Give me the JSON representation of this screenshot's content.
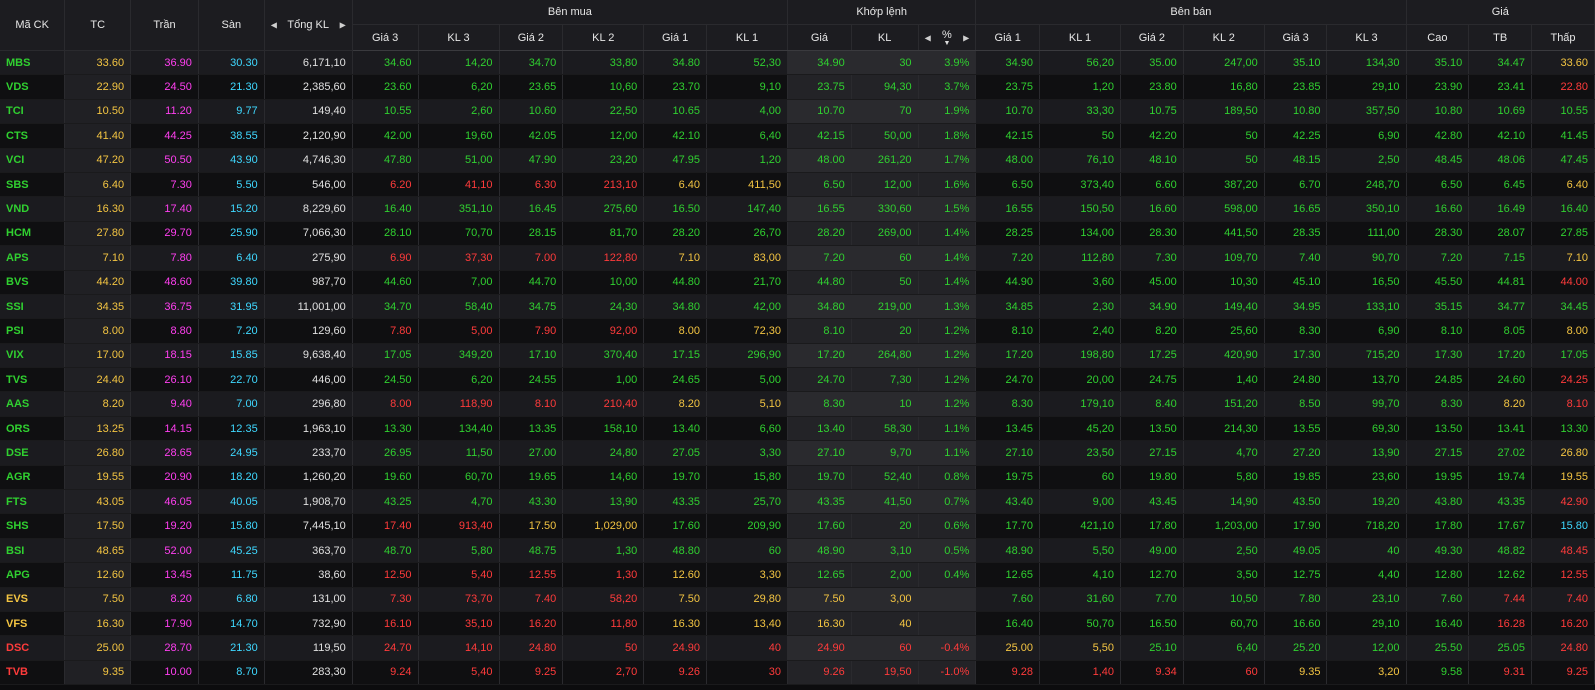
{
  "colors": {
    "up": "#30d030",
    "down": "#ff3b3b",
    "ref": "#f4c542",
    "ceil": "#ff3ff0",
    "floor": "#3fd8ff",
    "neutral": "#e0e0e0"
  },
  "header": {
    "symbol": "Mã CK",
    "ref": "TC",
    "ceil": "Trần",
    "floor": "Sàn",
    "total_vol": "Tổng KL",
    "buy_group": "Bên mua",
    "match_group": "Khớp lệnh",
    "sell_group": "Bên bán",
    "price_group": "Giá",
    "buy": [
      "Giá 3",
      "KL 3",
      "Giá 2",
      "KL 2",
      "Giá 1",
      "KL 1"
    ],
    "match": [
      "Giá",
      "KL",
      "%"
    ],
    "sell": [
      "Giá 1",
      "KL 1",
      "Giá 2",
      "KL 2",
      "Giá 3",
      "KL 3"
    ],
    "price": [
      "Cao",
      "TB",
      "Thấp"
    ]
  },
  "rows": [
    {
      "sym": "MBS",
      "tc": "33.60",
      "ceil": "36.90",
      "floor": "30.30",
      "vol": "6,171,10",
      "b3p": "34.60",
      "b3v": "14,20",
      "b2p": "34.70",
      "b2v": "33,80",
      "b1p": "34.80",
      "b1v": "52,30",
      "mp": "34.90",
      "mv": "30",
      "pct": "3.9%",
      "s1p": "34.90",
      "s1v": "56,20",
      "s2p": "35.00",
      "s2v": "247,00",
      "s3p": "35.10",
      "s3v": "134,30",
      "hi": "35.10",
      "avg": "34.47",
      "lo": "33.60"
    },
    {
      "sym": "VDS",
      "tc": "22.90",
      "ceil": "24.50",
      "floor": "21.30",
      "vol": "2,385,60",
      "b3p": "23.60",
      "b3v": "6,20",
      "b2p": "23.65",
      "b2v": "10,60",
      "b1p": "23.70",
      "b1v": "9,10",
      "mp": "23.75",
      "mv": "94,30",
      "pct": "3.7%",
      "s1p": "23.75",
      "s1v": "1,20",
      "s2p": "23.80",
      "s2v": "16,80",
      "s3p": "23.85",
      "s3v": "29,10",
      "hi": "23.90",
      "avg": "23.41",
      "lo": "22.80"
    },
    {
      "sym": "TCI",
      "tc": "10.50",
      "ceil": "11.20",
      "floor": "9.77",
      "vol": "149,40",
      "b3p": "10.55",
      "b3v": "2,60",
      "b2p": "10.60",
      "b2v": "22,50",
      "b1p": "10.65",
      "b1v": "4,00",
      "mp": "10.70",
      "mv": "70",
      "pct": "1.9%",
      "s1p": "10.70",
      "s1v": "33,30",
      "s2p": "10.75",
      "s2v": "189,50",
      "s3p": "10.80",
      "s3v": "357,50",
      "hi": "10.80",
      "avg": "10.69",
      "lo": "10.55"
    },
    {
      "sym": "CTS",
      "tc": "41.40",
      "ceil": "44.25",
      "floor": "38.55",
      "vol": "2,120,90",
      "b3p": "42.00",
      "b3v": "19,60",
      "b2p": "42.05",
      "b2v": "12,00",
      "b1p": "42.10",
      "b1v": "6,40",
      "mp": "42.15",
      "mv": "50,00",
      "pct": "1.8%",
      "s1p": "42.15",
      "s1v": "50",
      "s2p": "42.20",
      "s2v": "50",
      "s3p": "42.25",
      "s3v": "6,90",
      "hi": "42.80",
      "avg": "42.10",
      "lo": "41.45"
    },
    {
      "sym": "VCI",
      "tc": "47.20",
      "ceil": "50.50",
      "floor": "43.90",
      "vol": "4,746,30",
      "b3p": "47.80",
      "b3v": "51,00",
      "b2p": "47.90",
      "b2v": "23,20",
      "b1p": "47.95",
      "b1v": "1,20",
      "mp": "48.00",
      "mv": "261,20",
      "pct": "1.7%",
      "s1p": "48.00",
      "s1v": "76,10",
      "s2p": "48.10",
      "s2v": "50",
      "s3p": "48.15",
      "s3v": "2,50",
      "hi": "48.45",
      "avg": "48.06",
      "lo": "47.45"
    },
    {
      "sym": "SBS",
      "tc": "6.40",
      "ceil": "7.30",
      "floor": "5.50",
      "vol": "546,00",
      "b3p": "6.20",
      "b3v": "41,10",
      "b2p": "6.30",
      "b2v": "213,10",
      "b1p": "6.40",
      "b1v": "411,50",
      "mp": "6.50",
      "mv": "12,00",
      "pct": "1.6%",
      "s1p": "6.50",
      "s1v": "373,40",
      "s2p": "6.60",
      "s2v": "387,20",
      "s3p": "6.70",
      "s3v": "248,70",
      "hi": "6.50",
      "avg": "6.45",
      "lo": "6.40"
    },
    {
      "sym": "VND",
      "tc": "16.30",
      "ceil": "17.40",
      "floor": "15.20",
      "vol": "8,229,60",
      "b3p": "16.40",
      "b3v": "351,10",
      "b2p": "16.45",
      "b2v": "275,60",
      "b1p": "16.50",
      "b1v": "147,40",
      "mp": "16.55",
      "mv": "330,60",
      "pct": "1.5%",
      "s1p": "16.55",
      "s1v": "150,50",
      "s2p": "16.60",
      "s2v": "598,00",
      "s3p": "16.65",
      "s3v": "350,10",
      "hi": "16.60",
      "avg": "16.49",
      "lo": "16.40"
    },
    {
      "sym": "HCM",
      "tc": "27.80",
      "ceil": "29.70",
      "floor": "25.90",
      "vol": "7,066,30",
      "b3p": "28.10",
      "b3v": "70,70",
      "b2p": "28.15",
      "b2v": "81,70",
      "b1p": "28.20",
      "b1v": "26,70",
      "mp": "28.20",
      "mv": "269,00",
      "pct": "1.4%",
      "s1p": "28.25",
      "s1v": "134,00",
      "s2p": "28.30",
      "s2v": "441,50",
      "s3p": "28.35",
      "s3v": "111,00",
      "hi": "28.30",
      "avg": "28.07",
      "lo": "27.85"
    },
    {
      "sym": "APS",
      "tc": "7.10",
      "ceil": "7.80",
      "floor": "6.40",
      "vol": "275,90",
      "b3p": "6.90",
      "b3v": "37,30",
      "b2p": "7.00",
      "b2v": "122,80",
      "b1p": "7.10",
      "b1v": "83,00",
      "mp": "7.20",
      "mv": "60",
      "pct": "1.4%",
      "s1p": "7.20",
      "s1v": "112,80",
      "s2p": "7.30",
      "s2v": "109,70",
      "s3p": "7.40",
      "s3v": "90,70",
      "hi": "7.20",
      "avg": "7.15",
      "lo": "7.10"
    },
    {
      "sym": "BVS",
      "tc": "44.20",
      "ceil": "48.60",
      "floor": "39.80",
      "vol": "987,70",
      "b3p": "44.60",
      "b3v": "7,00",
      "b2p": "44.70",
      "b2v": "10,00",
      "b1p": "44.80",
      "b1v": "21,70",
      "mp": "44.80",
      "mv": "50",
      "pct": "1.4%",
      "s1p": "44.90",
      "s1v": "3,60",
      "s2p": "45.00",
      "s2v": "10,30",
      "s3p": "45.10",
      "s3v": "16,50",
      "hi": "45.50",
      "avg": "44.81",
      "lo": "44.00"
    },
    {
      "sym": "SSI",
      "tc": "34.35",
      "ceil": "36.75",
      "floor": "31.95",
      "vol": "11,001,00",
      "b3p": "34.70",
      "b3v": "58,40",
      "b2p": "34.75",
      "b2v": "24,30",
      "b1p": "34.80",
      "b1v": "42,00",
      "mp": "34.80",
      "mv": "219,00",
      "pct": "1.3%",
      "s1p": "34.85",
      "s1v": "2,30",
      "s2p": "34.90",
      "s2v": "149,40",
      "s3p": "34.95",
      "s3v": "133,10",
      "hi": "35.15",
      "avg": "34.77",
      "lo": "34.45"
    },
    {
      "sym": "PSI",
      "tc": "8.00",
      "ceil": "8.80",
      "floor": "7.20",
      "vol": "129,60",
      "b3p": "7.80",
      "b3v": "5,00",
      "b2p": "7.90",
      "b2v": "92,00",
      "b1p": "8.00",
      "b1v": "72,30",
      "mp": "8.10",
      "mv": "20",
      "pct": "1.2%",
      "s1p": "8.10",
      "s1v": "2,40",
      "s2p": "8.20",
      "s2v": "25,60",
      "s3p": "8.30",
      "s3v": "6,90",
      "hi": "8.10",
      "avg": "8.05",
      "lo": "8.00"
    },
    {
      "sym": "VIX",
      "tc": "17.00",
      "ceil": "18.15",
      "floor": "15.85",
      "vol": "9,638,40",
      "b3p": "17.05",
      "b3v": "349,20",
      "b2p": "17.10",
      "b2v": "370,40",
      "b1p": "17.15",
      "b1v": "296,90",
      "mp": "17.20",
      "mv": "264,80",
      "pct": "1.2%",
      "s1p": "17.20",
      "s1v": "198,80",
      "s2p": "17.25",
      "s2v": "420,90",
      "s3p": "17.30",
      "s3v": "715,20",
      "hi": "17.30",
      "avg": "17.20",
      "lo": "17.05"
    },
    {
      "sym": "TVS",
      "tc": "24.40",
      "ceil": "26.10",
      "floor": "22.70",
      "vol": "446,00",
      "b3p": "24.50",
      "b3v": "6,20",
      "b2p": "24.55",
      "b2v": "1,00",
      "b1p": "24.65",
      "b1v": "5,00",
      "mp": "24.70",
      "mv": "7,30",
      "pct": "1.2%",
      "s1p": "24.70",
      "s1v": "20,00",
      "s2p": "24.75",
      "s2v": "1,40",
      "s3p": "24.80",
      "s3v": "13,70",
      "hi": "24.85",
      "avg": "24.60",
      "lo": "24.25"
    },
    {
      "sym": "AAS",
      "tc": "8.20",
      "ceil": "9.40",
      "floor": "7.00",
      "vol": "296,80",
      "b3p": "8.00",
      "b3v": "118,90",
      "b2p": "8.10",
      "b2v": "210,40",
      "b1p": "8.20",
      "b1v": "5,10",
      "mp": "8.30",
      "mv": "10",
      "pct": "1.2%",
      "s1p": "8.30",
      "s1v": "179,10",
      "s2p": "8.40",
      "s2v": "151,20",
      "s3p": "8.50",
      "s3v": "99,70",
      "hi": "8.30",
      "avg": "8.20",
      "lo": "8.10"
    },
    {
      "sym": "ORS",
      "tc": "13.25",
      "ceil": "14.15",
      "floor": "12.35",
      "vol": "1,963,10",
      "b3p": "13.30",
      "b3v": "134,40",
      "b2p": "13.35",
      "b2v": "158,10",
      "b1p": "13.40",
      "b1v": "6,60",
      "mp": "13.40",
      "mv": "58,30",
      "pct": "1.1%",
      "s1p": "13.45",
      "s1v": "45,20",
      "s2p": "13.50",
      "s2v": "214,30",
      "s3p": "13.55",
      "s3v": "69,30",
      "hi": "13.50",
      "avg": "13.41",
      "lo": "13.30"
    },
    {
      "sym": "DSE",
      "tc": "26.80",
      "ceil": "28.65",
      "floor": "24.95",
      "vol": "233,70",
      "b3p": "26.95",
      "b3v": "11,50",
      "b2p": "27.00",
      "b2v": "24,80",
      "b1p": "27.05",
      "b1v": "3,30",
      "mp": "27.10",
      "mv": "9,70",
      "pct": "1.1%",
      "s1p": "27.10",
      "s1v": "23,50",
      "s2p": "27.15",
      "s2v": "4,70",
      "s3p": "27.20",
      "s3v": "13,90",
      "hi": "27.15",
      "avg": "27.02",
      "lo": "26.80"
    },
    {
      "sym": "AGR",
      "tc": "19.55",
      "ceil": "20.90",
      "floor": "18.20",
      "vol": "1,260,20",
      "b3p": "19.60",
      "b3v": "60,70",
      "b2p": "19.65",
      "b2v": "14,60",
      "b1p": "19.70",
      "b1v": "15,80",
      "mp": "19.70",
      "mv": "52,40",
      "pct": "0.8%",
      "s1p": "19.75",
      "s1v": "60",
      "s2p": "19.80",
      "s2v": "5,80",
      "s3p": "19.85",
      "s3v": "23,60",
      "hi": "19.95",
      "avg": "19.74",
      "lo": "19.55"
    },
    {
      "sym": "FTS",
      "tc": "43.05",
      "ceil": "46.05",
      "floor": "40.05",
      "vol": "1,908,70",
      "b3p": "43.25",
      "b3v": "4,70",
      "b2p": "43.30",
      "b2v": "13,90",
      "b1p": "43.35",
      "b1v": "25,70",
      "mp": "43.35",
      "mv": "41,50",
      "pct": "0.7%",
      "s1p": "43.40",
      "s1v": "9,00",
      "s2p": "43.45",
      "s2v": "14,90",
      "s3p": "43.50",
      "s3v": "19,20",
      "hi": "43.80",
      "avg": "43.35",
      "lo": "42.90"
    },
    {
      "sym": "SHS",
      "tc": "17.50",
      "ceil": "19.20",
      "floor": "15.80",
      "vol": "7,445,10",
      "b3p": "17.40",
      "b3v": "913,40",
      "b2p": "17.50",
      "b2v": "1,029,00",
      "b1p": "17.60",
      "b1v": "209,90",
      "mp": "17.60",
      "mv": "20",
      "pct": "0.6%",
      "s1p": "17.70",
      "s1v": "421,10",
      "s2p": "17.80",
      "s2v": "1,203,00",
      "s3p": "17.90",
      "s3v": "718,20",
      "hi": "17.80",
      "avg": "17.67",
      "lo": "15.80"
    },
    {
      "sym": "BSI",
      "tc": "48.65",
      "ceil": "52.00",
      "floor": "45.25",
      "vol": "363,70",
      "b3p": "48.70",
      "b3v": "5,80",
      "b2p": "48.75",
      "b2v": "1,30",
      "b1p": "48.80",
      "b1v": "60",
      "mp": "48.90",
      "mv": "3,10",
      "pct": "0.5%",
      "s1p": "48.90",
      "s1v": "5,50",
      "s2p": "49.00",
      "s2v": "2,50",
      "s3p": "49.05",
      "s3v": "40",
      "hi": "49.30",
      "avg": "48.82",
      "lo": "48.45"
    },
    {
      "sym": "APG",
      "tc": "12.60",
      "ceil": "13.45",
      "floor": "11.75",
      "vol": "38,60",
      "b3p": "12.50",
      "b3v": "5,40",
      "b2p": "12.55",
      "b2v": "1,30",
      "b1p": "12.60",
      "b1v": "3,30",
      "mp": "12.65",
      "mv": "2,00",
      "pct": "0.4%",
      "s1p": "12.65",
      "s1v": "4,10",
      "s2p": "12.70",
      "s2v": "3,50",
      "s3p": "12.75",
      "s3v": "4,40",
      "hi": "12.80",
      "avg": "12.62",
      "lo": "12.55"
    },
    {
      "sym": "EVS",
      "tc": "7.50",
      "ceil": "8.20",
      "floor": "6.80",
      "vol": "131,00",
      "b3p": "7.30",
      "b3v": "73,70",
      "b2p": "7.40",
      "b2v": "58,20",
      "b1p": "7.50",
      "b1v": "29,80",
      "mp": "7.50",
      "mv": "3,00",
      "pct": "",
      "s1p": "7.60",
      "s1v": "31,60",
      "s2p": "7.70",
      "s2v": "10,50",
      "s3p": "7.80",
      "s3v": "23,10",
      "hi": "7.60",
      "avg": "7.44",
      "lo": "7.40"
    },
    {
      "sym": "VFS",
      "tc": "16.30",
      "ceil": "17.90",
      "floor": "14.70",
      "vol": "732,90",
      "b3p": "16.10",
      "b3v": "35,10",
      "b2p": "16.20",
      "b2v": "11,80",
      "b1p": "16.30",
      "b1v": "13,40",
      "mp": "16.30",
      "mv": "40",
      "pct": "",
      "s1p": "16.40",
      "s1v": "50,70",
      "s2p": "16.50",
      "s2v": "60,70",
      "s3p": "16.60",
      "s3v": "29,10",
      "hi": "16.40",
      "avg": "16.28",
      "lo": "16.20"
    },
    {
      "sym": "DSC",
      "tc": "25.00",
      "ceil": "28.70",
      "floor": "21.30",
      "vol": "119,50",
      "b3p": "24.70",
      "b3v": "14,10",
      "b2p": "24.80",
      "b2v": "50",
      "b1p": "24.90",
      "b1v": "40",
      "mp": "24.90",
      "mv": "60",
      "pct": "-0.4%",
      "s1p": "25.00",
      "s1v": "5,50",
      "s2p": "25.10",
      "s2v": "6,40",
      "s3p": "25.20",
      "s3v": "12,00",
      "hi": "25.50",
      "avg": "25.05",
      "lo": "24.80"
    },
    {
      "sym": "TVB",
      "tc": "9.35",
      "ceil": "10.00",
      "floor": "8.70",
      "vol": "283,30",
      "b3p": "9.24",
      "b3v": "5,40",
      "b2p": "9.25",
      "b2v": "2,70",
      "b1p": "9.26",
      "b1v": "30",
      "mp": "9.26",
      "mv": "19,50",
      "pct": "-1.0%",
      "s1p": "9.28",
      "s1v": "1,40",
      "s2p": "9.34",
      "s2v": "60",
      "s3p": "9.35",
      "s3v": "3,20",
      "hi": "9.58",
      "avg": "9.31",
      "lo": "9.25"
    }
  ]
}
